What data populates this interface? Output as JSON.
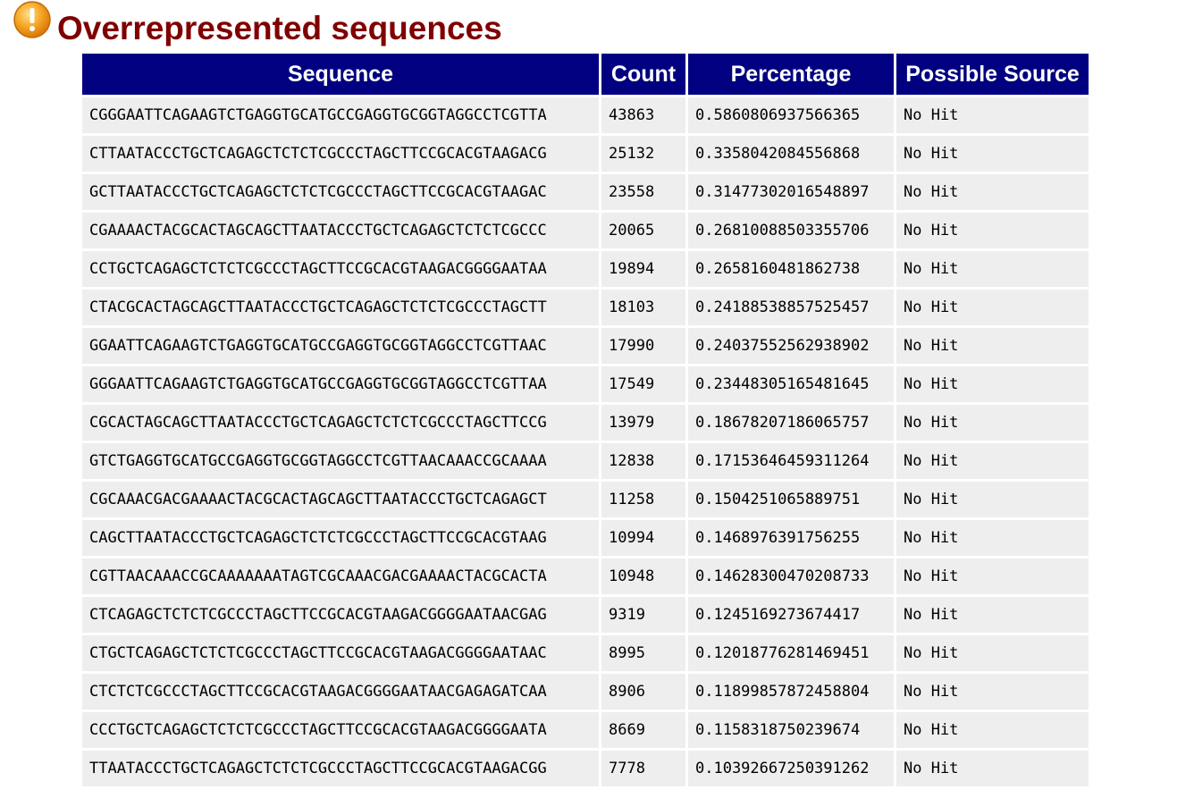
{
  "header": {
    "title": "Overrepresented sequences",
    "status_icon": "warning-icon",
    "status_color": "#f39c12"
  },
  "table": {
    "columns": [
      "Sequence",
      "Count",
      "Percentage",
      "Possible Source"
    ],
    "rows": [
      {
        "sequence": "CGGGAATTCAGAAGTCTGAGGTGCATGCCGAGGTGCGGTAGGCCTCGTTA",
        "count": "43863",
        "percentage": "0.5860806937566365",
        "source": "No Hit"
      },
      {
        "sequence": "CTTAATACCCTGCTCAGAGCTCTCTCGCCCTAGCTTCCGCACGTAAGACG",
        "count": "25132",
        "percentage": "0.3358042084556868",
        "source": "No Hit"
      },
      {
        "sequence": "GCTTAATACCCTGCTCAGAGCTCTCTCGCCCTAGCTTCCGCACGTAAGAC",
        "count": "23558",
        "percentage": "0.31477302016548897",
        "source": "No Hit"
      },
      {
        "sequence": "CGAAAACTACGCACTAGCAGCTTAATACCCTGCTCAGAGCTCTCTCGCCC",
        "count": "20065",
        "percentage": "0.26810088503355706",
        "source": "No Hit"
      },
      {
        "sequence": "CCTGCTCAGAGCTCTCTCGCCCTAGCTTCCGCACGTAAGACGGGGAATAA",
        "count": "19894",
        "percentage": "0.2658160481862738",
        "source": "No Hit"
      },
      {
        "sequence": "CTACGCACTAGCAGCTTAATACCCTGCTCAGAGCTCTCTCGCCCTAGCTT",
        "count": "18103",
        "percentage": "0.24188538857525457",
        "source": "No Hit"
      },
      {
        "sequence": "GGAATTCAGAAGTCTGAGGTGCATGCCGAGGTGCGGTAGGCCTCGTTAAC",
        "count": "17990",
        "percentage": "0.24037552562938902",
        "source": "No Hit"
      },
      {
        "sequence": "GGGAATTCAGAAGTCTGAGGTGCATGCCGAGGTGCGGTAGGCCTCGTTAA",
        "count": "17549",
        "percentage": "0.23448305165481645",
        "source": "No Hit"
      },
      {
        "sequence": "CGCACTAGCAGCTTAATACCCTGCTCAGAGCTCTCTCGCCCTAGCTTCCG",
        "count": "13979",
        "percentage": "0.18678207186065757",
        "source": "No Hit"
      },
      {
        "sequence": "GTCTGAGGTGCATGCCGAGGTGCGGTAGGCCTCGTTAACAAACCGCAAAA",
        "count": "12838",
        "percentage": "0.17153646459311264",
        "source": "No Hit"
      },
      {
        "sequence": "CGCAAACGACGAAAACTACGCACTAGCAGCTTAATACCCTGCTCAGAGCT",
        "count": "11258",
        "percentage": "0.1504251065889751",
        "source": "No Hit"
      },
      {
        "sequence": "CAGCTTAATACCCTGCTCAGAGCTCTCTCGCCCTAGCTTCCGCACGTAAG",
        "count": "10994",
        "percentage": "0.1468976391756255",
        "source": "No Hit"
      },
      {
        "sequence": "CGTTAACAAACCGCAAAAAAATAGTCGCAAACGACGAAAACTACGCACTA",
        "count": "10948",
        "percentage": "0.14628300470208733",
        "source": "No Hit"
      },
      {
        "sequence": "CTCAGAGCTCTCTCGCCCTAGCTTCCGCACGTAAGACGGGGAATAACGAG",
        "count": "9319",
        "percentage": "0.1245169273674417",
        "source": "No Hit"
      },
      {
        "sequence": "CTGCTCAGAGCTCTCTCGCCCTAGCTTCCGCACGTAAGACGGGGAATAAC",
        "count": "8995",
        "percentage": "0.12018776281469451",
        "source": "No Hit"
      },
      {
        "sequence": "CTCTCTCGCCCTAGCTTCCGCACGTAAGACGGGGAATAACGAGAGATCAA",
        "count": "8906",
        "percentage": "0.11899857872458804",
        "source": "No Hit"
      },
      {
        "sequence": "CCCTGCTCAGAGCTCTCTCGCCCTAGCTTCCGCACGTAAGACGGGGAATA",
        "count": "8669",
        "percentage": "0.1158318750239674",
        "source": "No Hit"
      },
      {
        "sequence": "TTAATACCCTGCTCAGAGCTCTCTCGCCCTAGCTTCCGCACGTAAGACGG",
        "count": "7778",
        "percentage": "0.10392667250391262",
        "source": "No Hit"
      }
    ]
  }
}
